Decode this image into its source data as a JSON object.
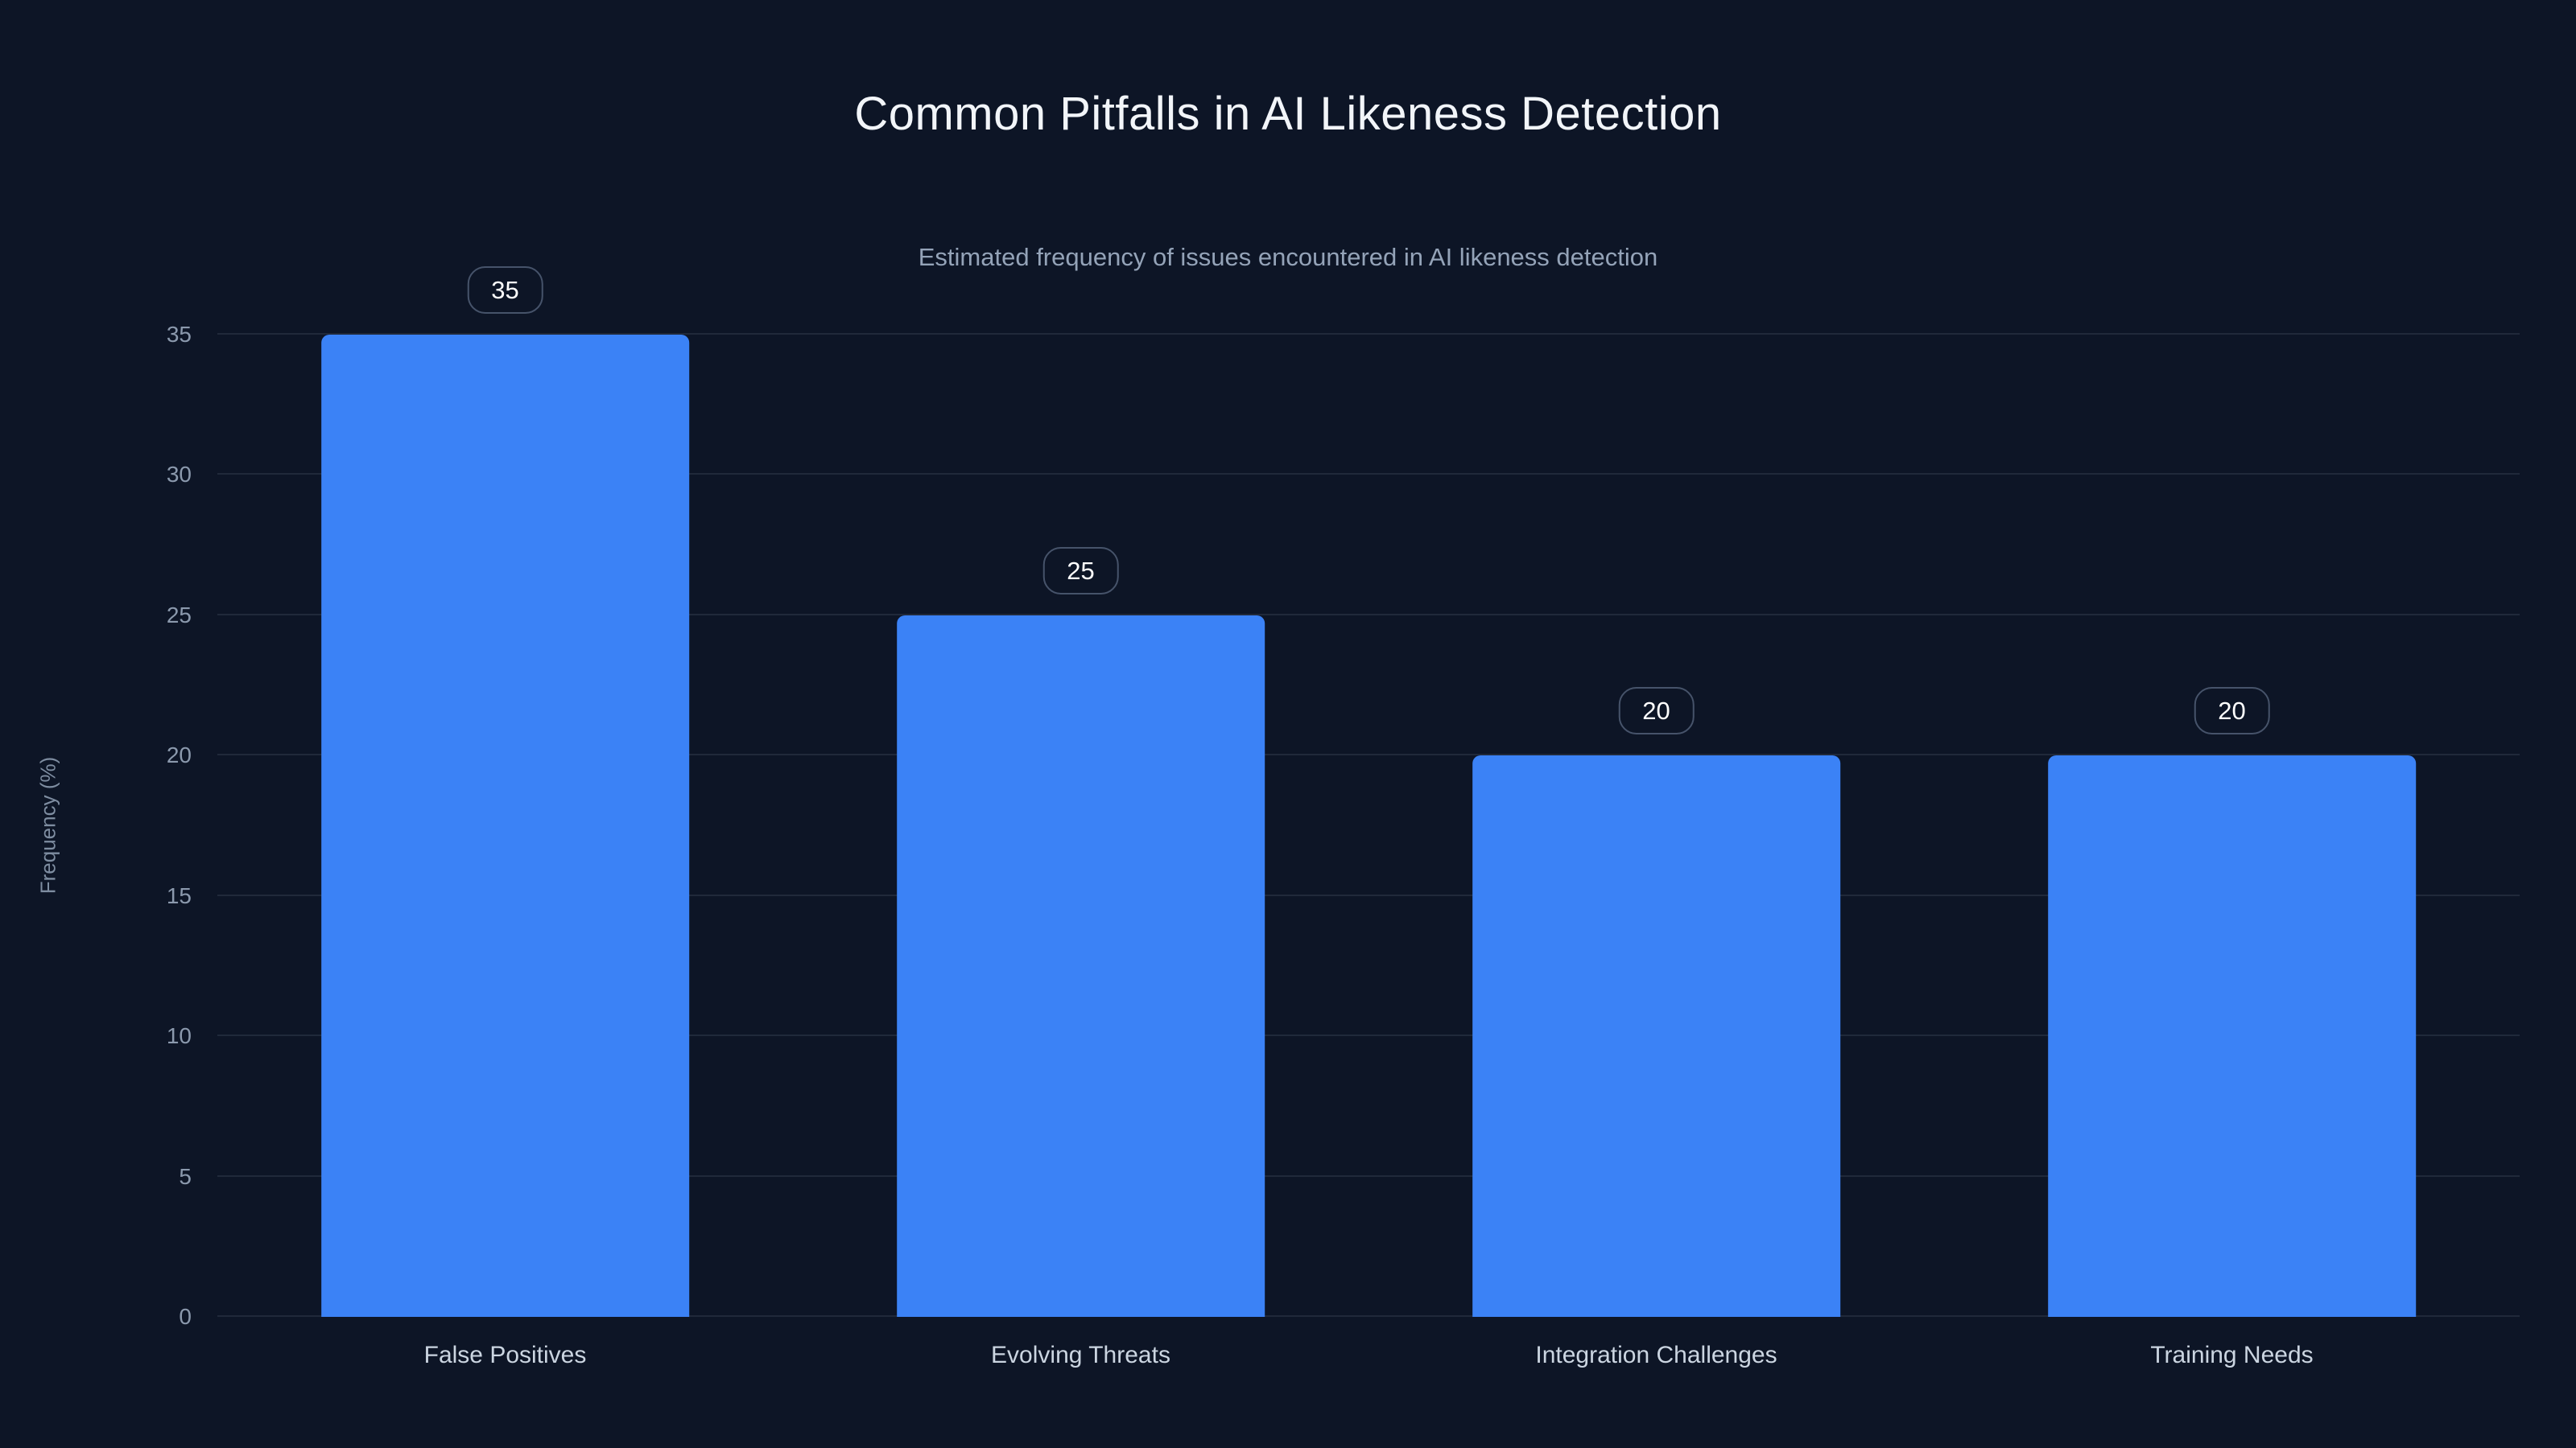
{
  "chart_data": {
    "type": "bar",
    "title": "Common Pitfalls in AI Likeness Detection",
    "subtitle": "Estimated frequency of issues encountered in AI likeness detection",
    "categories": [
      "False Positives",
      "Evolving Threats",
      "Integration Challenges",
      "Training Needs"
    ],
    "values": [
      35,
      25,
      20,
      20
    ],
    "value_labels": [
      "35",
      "25",
      "20",
      "20"
    ],
    "xlabel": "",
    "ylabel": "Frequency (%)",
    "ylim": [
      0,
      35
    ],
    "ytick_step": 5,
    "yticks": [
      0,
      5,
      10,
      15,
      20,
      25,
      30,
      35
    ],
    "grid": true,
    "legend": "none",
    "bar_color": "#3b82f6",
    "background_color": "#0d1526",
    "title_color": "#f2f5f9",
    "subtitle_color": "#94a3b8",
    "tick_color": "#8b99ad",
    "gridline_color": "rgba(148,163,184,0.14)",
    "badge_border_color": "#46536a",
    "badge_text_color": "#ffffff"
  }
}
